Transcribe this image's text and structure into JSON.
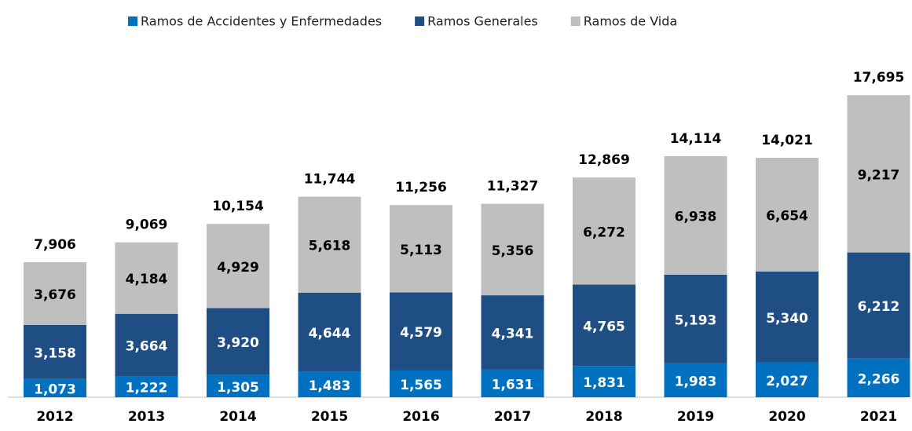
{
  "chart_data": {
    "type": "stacked_bar",
    "categories": [
      "2012",
      "2013",
      "2014",
      "2015",
      "2016",
      "2017",
      "2018",
      "2019",
      "2020",
      "2021"
    ],
    "series": [
      {
        "name": "Ramos de Accidentes y Enfermedades",
        "color": "#0070c0",
        "values": [
          1073,
          1222,
          1305,
          1483,
          1565,
          1631,
          1831,
          1983,
          2027,
          2266
        ],
        "value_labels": [
          "1,073",
          "1,222",
          "1,305",
          "1,483",
          "1,565",
          "1,631",
          "1,831",
          "1,983",
          "2,027",
          "2,266"
        ]
      },
      {
        "name": "Ramos Generales",
        "color": "#1f4e84",
        "values": [
          3158,
          3664,
          3920,
          4644,
          4579,
          4341,
          4765,
          5193,
          5340,
          6212
        ],
        "value_labels": [
          "3,158",
          "3,664",
          "3,920",
          "4,644",
          "4,579",
          "4,341",
          "4,765",
          "5,193",
          "5,340",
          "6,212"
        ]
      },
      {
        "name": "Ramos de Vida",
        "color": "#bfbfbf",
        "values": [
          3676,
          4184,
          4929,
          5618,
          5113,
          5356,
          6272,
          6938,
          6654,
          9217
        ],
        "value_labels": [
          "3,676",
          "4,184",
          "4,929",
          "5,618",
          "5,113",
          "5,356",
          "6,272",
          "6,938",
          "6,654",
          "9,217"
        ]
      }
    ],
    "totals": [
      7906,
      9069,
      10154,
      11744,
      11256,
      11327,
      12869,
      14114,
      14021,
      17695
    ],
    "total_labels": [
      "7,906",
      "9,069",
      "10,154",
      "11,744",
      "11,256",
      "11,327",
      "12,869",
      "14,114",
      "14,021",
      "17,695"
    ],
    "ylim": [
      0,
      20000
    ],
    "legend": "top"
  }
}
